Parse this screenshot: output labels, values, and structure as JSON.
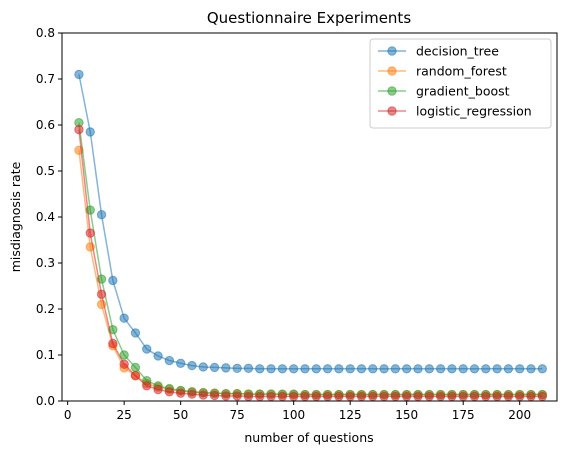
{
  "chart_data": {
    "type": "line",
    "title": "Questionnaire Experiments",
    "xlabel": "number of questions",
    "ylabel": "misdiagnosis rate",
    "xlim": [
      -2.5,
      216.5
    ],
    "ylim": [
      0,
      0.8
    ],
    "xticks": [
      0,
      25,
      50,
      75,
      100,
      125,
      150,
      175,
      200
    ],
    "yticks": [
      0.0,
      0.1,
      0.2,
      0.3,
      0.4,
      0.5,
      0.6,
      0.7,
      0.8
    ],
    "grid": false,
    "legend_position": "top-right",
    "x": [
      5,
      10,
      15,
      20,
      25,
      30,
      35,
      40,
      45,
      50,
      55,
      60,
      65,
      70,
      75,
      80,
      85,
      90,
      95,
      100,
      105,
      110,
      115,
      120,
      125,
      130,
      135,
      140,
      145,
      150,
      155,
      160,
      165,
      170,
      175,
      180,
      185,
      190,
      195,
      200,
      205,
      210
    ],
    "series": [
      {
        "name": "decision_tree",
        "color": "#1f77b4",
        "values": [
          0.71,
          0.585,
          0.405,
          0.262,
          0.18,
          0.148,
          0.113,
          0.098,
          0.088,
          0.082,
          0.077,
          0.074,
          0.073,
          0.072,
          0.071,
          0.071,
          0.07,
          0.07,
          0.07,
          0.07,
          0.07,
          0.07,
          0.07,
          0.07,
          0.07,
          0.07,
          0.07,
          0.07,
          0.07,
          0.07,
          0.07,
          0.07,
          0.07,
          0.07,
          0.07,
          0.07,
          0.07,
          0.07,
          0.07,
          0.07,
          0.07,
          0.07
        ]
      },
      {
        "name": "random_forest",
        "color": "#ff7f0e",
        "values": [
          0.545,
          0.335,
          0.21,
          0.12,
          0.072,
          0.055,
          0.038,
          0.03,
          0.025,
          0.022,
          0.02,
          0.018,
          0.017,
          0.016,
          0.016,
          0.015,
          0.015,
          0.015,
          0.014,
          0.014,
          0.014,
          0.014,
          0.014,
          0.014,
          0.014,
          0.014,
          0.014,
          0.014,
          0.014,
          0.014,
          0.014,
          0.014,
          0.014,
          0.014,
          0.014,
          0.014,
          0.014,
          0.014,
          0.014,
          0.014,
          0.014,
          0.014
        ]
      },
      {
        "name": "gradient_boost",
        "color": "#2ca02c",
        "values": [
          0.605,
          0.415,
          0.265,
          0.155,
          0.1,
          0.073,
          0.044,
          0.033,
          0.027,
          0.023,
          0.02,
          0.018,
          0.017,
          0.016,
          0.016,
          0.015,
          0.015,
          0.015,
          0.015,
          0.015,
          0.014,
          0.014,
          0.014,
          0.014,
          0.014,
          0.014,
          0.014,
          0.014,
          0.014,
          0.014,
          0.014,
          0.014,
          0.014,
          0.014,
          0.014,
          0.014,
          0.014,
          0.014,
          0.014,
          0.014,
          0.014,
          0.014
        ]
      },
      {
        "name": "logistic_regression",
        "color": "#d62728",
        "values": [
          0.59,
          0.365,
          0.232,
          0.125,
          0.08,
          0.055,
          0.033,
          0.025,
          0.02,
          0.017,
          0.015,
          0.013,
          0.012,
          0.011,
          0.011,
          0.01,
          0.01,
          0.01,
          0.01,
          0.01,
          0.01,
          0.01,
          0.01,
          0.01,
          0.01,
          0.01,
          0.01,
          0.01,
          0.01,
          0.01,
          0.01,
          0.01,
          0.01,
          0.01,
          0.01,
          0.01,
          0.01,
          0.01,
          0.01,
          0.01,
          0.01,
          0.01
        ]
      }
    ]
  }
}
